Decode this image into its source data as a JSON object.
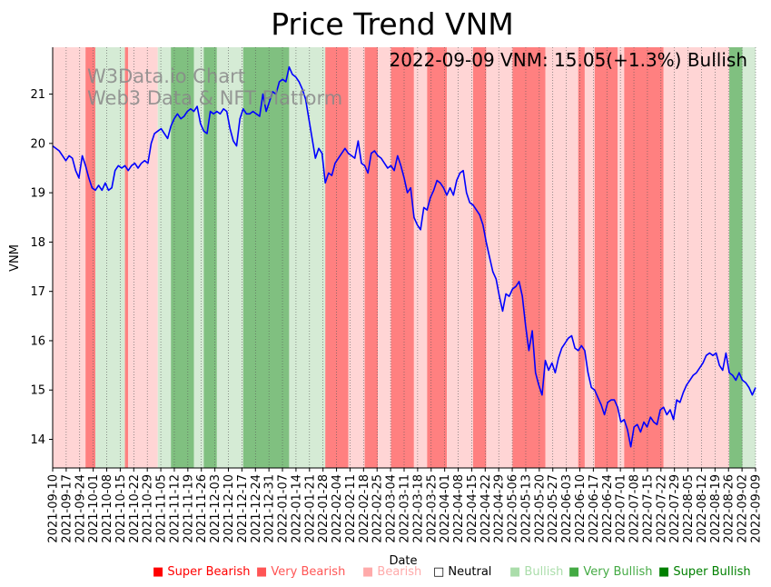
{
  "chart_data": {
    "type": "line",
    "title": "Price Trend VNM",
    "xlabel": "Date",
    "ylabel": "VNM",
    "ylim": [
      13.42,
      21.95
    ],
    "yticks": [
      14,
      15,
      16,
      17,
      18,
      19,
      20,
      21
    ],
    "x_tick_labels": [
      "2021-09-10",
      "2021-09-17",
      "2021-09-24",
      "2021-10-01",
      "2021-10-08",
      "2021-10-15",
      "2021-10-22",
      "2021-10-29",
      "2021-11-05",
      "2021-11-12",
      "2021-11-19",
      "2021-11-26",
      "2021-12-03",
      "2021-12-10",
      "2021-12-17",
      "2021-12-24",
      "2021-12-31",
      "2022-01-07",
      "2022-01-14",
      "2022-01-21",
      "2022-01-28",
      "2022-02-04",
      "2022-02-11",
      "2022-02-18",
      "2022-02-25",
      "2022-03-04",
      "2022-03-11",
      "2022-03-18",
      "2022-03-25",
      "2022-04-01",
      "2022-04-08",
      "2022-04-15",
      "2022-04-22",
      "2022-04-29",
      "2022-05-06",
      "2022-05-13",
      "2022-05-20",
      "2022-05-27",
      "2022-06-03",
      "2022-06-10",
      "2022-06-17",
      "2022-06-24",
      "2022-07-01",
      "2022-07-08",
      "2022-07-15",
      "2022-07-22",
      "2022-07-29",
      "2022-08-05",
      "2022-08-12",
      "2022-08-19",
      "2022-08-26",
      "2022-09-02",
      "2022-09-09"
    ],
    "annotation": "2022-09-09 VNM: 15.05(+1.3%) Bullish",
    "watermark": [
      "W3Data.io Chart",
      "Web3 Data & NFT Platform"
    ],
    "series": [
      {
        "name": "VNM",
        "color": "#0000ff",
        "points": [
          [
            0,
            19.95
          ],
          [
            2,
            19.85
          ],
          [
            4,
            19.65
          ],
          [
            5,
            19.75
          ],
          [
            6,
            19.7
          ],
          [
            7,
            19.45
          ],
          [
            8,
            19.3
          ],
          [
            9,
            19.75
          ],
          [
            10,
            19.55
          ],
          [
            11,
            19.3
          ],
          [
            12,
            19.1
          ],
          [
            13,
            19.05
          ],
          [
            14,
            19.15
          ],
          [
            15,
            19.05
          ],
          [
            16,
            19.2
          ],
          [
            17,
            19.05
          ],
          [
            18,
            19.1
          ],
          [
            19,
            19.45
          ],
          [
            20,
            19.55
          ],
          [
            21,
            19.5
          ],
          [
            22,
            19.55
          ],
          [
            23,
            19.45
          ],
          [
            24,
            19.55
          ],
          [
            25,
            19.6
          ],
          [
            26,
            19.5
          ],
          [
            27,
            19.6
          ],
          [
            28,
            19.65
          ],
          [
            29,
            19.6
          ],
          [
            30,
            20.0
          ],
          [
            31,
            20.2
          ],
          [
            32,
            20.25
          ],
          [
            33,
            20.3
          ],
          [
            34,
            20.2
          ],
          [
            35,
            20.1
          ],
          [
            36,
            20.35
          ],
          [
            37,
            20.5
          ],
          [
            38,
            20.6
          ],
          [
            39,
            20.5
          ],
          [
            40,
            20.55
          ],
          [
            41,
            20.65
          ],
          [
            42,
            20.7
          ],
          [
            43,
            20.65
          ],
          [
            44,
            20.75
          ],
          [
            45,
            20.4
          ],
          [
            46,
            20.25
          ],
          [
            47,
            20.2
          ],
          [
            48,
            20.65
          ],
          [
            49,
            20.6
          ],
          [
            50,
            20.65
          ],
          [
            51,
            20.6
          ],
          [
            52,
            20.7
          ],
          [
            53,
            20.65
          ],
          [
            54,
            20.3
          ],
          [
            55,
            20.05
          ],
          [
            56,
            19.95
          ],
          [
            57,
            20.5
          ],
          [
            58,
            20.7
          ],
          [
            59,
            20.6
          ],
          [
            60,
            20.6
          ],
          [
            61,
            20.65
          ],
          [
            62,
            20.6
          ],
          [
            63,
            20.55
          ],
          [
            64,
            21.0
          ],
          [
            65,
            20.65
          ],
          [
            66,
            20.85
          ],
          [
            67,
            21.05
          ],
          [
            68,
            21.0
          ],
          [
            69,
            21.25
          ],
          [
            70,
            21.3
          ],
          [
            71,
            21.25
          ],
          [
            72,
            21.55
          ],
          [
            73,
            21.4
          ],
          [
            74,
            21.35
          ],
          [
            75,
            21.25
          ],
          [
            76,
            21.1
          ],
          [
            77,
            20.9
          ],
          [
            78,
            20.5
          ],
          [
            79,
            20.1
          ],
          [
            80,
            19.7
          ],
          [
            81,
            19.9
          ],
          [
            82,
            19.8
          ],
          [
            83,
            19.2
          ],
          [
            84,
            19.4
          ],
          [
            85,
            19.35
          ],
          [
            86,
            19.6
          ],
          [
            87,
            19.7
          ],
          [
            88,
            19.8
          ],
          [
            89,
            19.9
          ],
          [
            90,
            19.8
          ],
          [
            91,
            19.75
          ],
          [
            92,
            19.7
          ],
          [
            93,
            20.05
          ],
          [
            94,
            19.6
          ],
          [
            95,
            19.55
          ],
          [
            96,
            19.4
          ],
          [
            97,
            19.8
          ],
          [
            98,
            19.85
          ],
          [
            99,
            19.75
          ],
          [
            100,
            19.7
          ],
          [
            101,
            19.6
          ],
          [
            102,
            19.5
          ],
          [
            103,
            19.55
          ],
          [
            104,
            19.45
          ],
          [
            105,
            19.75
          ],
          [
            106,
            19.55
          ],
          [
            107,
            19.3
          ],
          [
            108,
            19.0
          ],
          [
            109,
            19.1
          ],
          [
            110,
            18.5
          ],
          [
            111,
            18.35
          ],
          [
            112,
            18.25
          ],
          [
            113,
            18.7
          ],
          [
            114,
            18.65
          ],
          [
            115,
            18.9
          ],
          [
            116,
            19.05
          ],
          [
            117,
            19.25
          ],
          [
            118,
            19.2
          ],
          [
            119,
            19.1
          ],
          [
            120,
            18.95
          ],
          [
            121,
            19.1
          ],
          [
            122,
            18.95
          ],
          [
            123,
            19.25
          ],
          [
            124,
            19.4
          ],
          [
            125,
            19.45
          ],
          [
            126,
            19.0
          ],
          [
            127,
            18.8
          ],
          [
            128,
            18.75
          ],
          [
            129,
            18.65
          ],
          [
            130,
            18.55
          ],
          [
            131,
            18.35
          ],
          [
            132,
            18.0
          ],
          [
            133,
            17.7
          ],
          [
            134,
            17.4
          ],
          [
            135,
            17.25
          ],
          [
            136,
            16.9
          ],
          [
            137,
            16.6
          ],
          [
            138,
            16.95
          ],
          [
            139,
            16.9
          ],
          [
            140,
            17.05
          ],
          [
            141,
            17.1
          ],
          [
            142,
            17.2
          ],
          [
            143,
            16.9
          ],
          [
            144,
            16.3
          ],
          [
            145,
            15.8
          ],
          [
            146,
            16.2
          ],
          [
            147,
            15.35
          ],
          [
            148,
            15.1
          ],
          [
            149,
            14.9
          ],
          [
            150,
            15.6
          ],
          [
            151,
            15.4
          ],
          [
            152,
            15.55
          ],
          [
            153,
            15.35
          ],
          [
            154,
            15.65
          ],
          [
            155,
            15.85
          ],
          [
            156,
            15.95
          ],
          [
            157,
            16.05
          ],
          [
            158,
            16.1
          ],
          [
            159,
            15.85
          ],
          [
            160,
            15.8
          ],
          [
            161,
            15.9
          ],
          [
            162,
            15.8
          ],
          [
            163,
            15.35
          ],
          [
            164,
            15.05
          ],
          [
            165,
            15.0
          ],
          [
            166,
            14.85
          ],
          [
            167,
            14.7
          ],
          [
            168,
            14.5
          ],
          [
            169,
            14.75
          ],
          [
            170,
            14.8
          ],
          [
            171,
            14.8
          ],
          [
            172,
            14.65
          ],
          [
            173,
            14.35
          ],
          [
            174,
            14.4
          ],
          [
            175,
            14.2
          ],
          [
            176,
            13.85
          ],
          [
            177,
            14.25
          ],
          [
            178,
            14.3
          ],
          [
            179,
            14.15
          ],
          [
            180,
            14.35
          ],
          [
            181,
            14.25
          ],
          [
            182,
            14.45
          ],
          [
            183,
            14.35
          ],
          [
            184,
            14.3
          ],
          [
            185,
            14.6
          ],
          [
            186,
            14.65
          ],
          [
            187,
            14.5
          ],
          [
            188,
            14.6
          ],
          [
            189,
            14.4
          ],
          [
            190,
            14.8
          ],
          [
            191,
            14.75
          ],
          [
            192,
            14.95
          ],
          [
            193,
            15.1
          ],
          [
            194,
            15.2
          ],
          [
            195,
            15.3
          ],
          [
            196,
            15.35
          ],
          [
            197,
            15.45
          ],
          [
            198,
            15.55
          ],
          [
            199,
            15.7
          ],
          [
            200,
            15.75
          ],
          [
            201,
            15.7
          ],
          [
            202,
            15.75
          ],
          [
            203,
            15.5
          ],
          [
            204,
            15.4
          ],
          [
            205,
            15.75
          ],
          [
            206,
            15.35
          ],
          [
            207,
            15.3
          ],
          [
            208,
            15.2
          ],
          [
            209,
            15.35
          ],
          [
            210,
            15.2
          ],
          [
            211,
            15.15
          ],
          [
            212,
            15.05
          ],
          [
            213,
            14.9
          ],
          [
            214,
            15.05
          ]
        ]
      }
    ],
    "x_max_index": 214,
    "sentiment_bands": [
      {
        "start": 0,
        "end": 10,
        "level": "Bearish"
      },
      {
        "start": 10,
        "end": 13,
        "level": "Very Bearish"
      },
      {
        "start": 13,
        "end": 22,
        "level": "Bullish"
      },
      {
        "start": 22,
        "end": 23,
        "level": "Very Bearish"
      },
      {
        "start": 23,
        "end": 32,
        "level": "Bearish"
      },
      {
        "start": 32,
        "end": 36,
        "level": "Bullish"
      },
      {
        "start": 36,
        "end": 43,
        "level": "Very Bullish"
      },
      {
        "start": 43,
        "end": 46,
        "level": "Bullish"
      },
      {
        "start": 46,
        "end": 50,
        "level": "Very Bullish"
      },
      {
        "start": 50,
        "end": 58,
        "level": "Bullish"
      },
      {
        "start": 58,
        "end": 72,
        "level": "Very Bullish"
      },
      {
        "start": 72,
        "end": 83,
        "level": "Bullish"
      },
      {
        "start": 83,
        "end": 90,
        "level": "Very Bearish"
      },
      {
        "start": 90,
        "end": 95,
        "level": "Bearish"
      },
      {
        "start": 95,
        "end": 99,
        "level": "Very Bearish"
      },
      {
        "start": 99,
        "end": 103,
        "level": "Bearish"
      },
      {
        "start": 103,
        "end": 110,
        "level": "Very Bearish"
      },
      {
        "start": 110,
        "end": 114,
        "level": "Bearish"
      },
      {
        "start": 114,
        "end": 120,
        "level": "Very Bearish"
      },
      {
        "start": 120,
        "end": 128,
        "level": "Bearish"
      },
      {
        "start": 128,
        "end": 132,
        "level": "Very Bearish"
      },
      {
        "start": 132,
        "end": 140,
        "level": "Bearish"
      },
      {
        "start": 140,
        "end": 150,
        "level": "Very Bearish"
      },
      {
        "start": 150,
        "end": 160,
        "level": "Bearish"
      },
      {
        "start": 160,
        "end": 162,
        "level": "Very Bearish"
      },
      {
        "start": 162,
        "end": 165,
        "level": "Bearish"
      },
      {
        "start": 165,
        "end": 172,
        "level": "Very Bearish"
      },
      {
        "start": 172,
        "end": 174,
        "level": "Bearish"
      },
      {
        "start": 174,
        "end": 186,
        "level": "Very Bearish"
      },
      {
        "start": 186,
        "end": 190,
        "level": "Bearish"
      },
      {
        "start": 190,
        "end": 206,
        "level": "Bearish"
      },
      {
        "start": 206,
        "end": 210,
        "level": "Very Bullish"
      },
      {
        "start": 210,
        "end": 214,
        "level": "Bullish"
      }
    ],
    "legend": [
      {
        "label": "Super Bearish",
        "marker": "■",
        "color": "#ff0000"
      },
      {
        "label": "Very Bearish",
        "marker": "■",
        "color": "#ff5555"
      },
      {
        "label": "Bearish",
        "marker": "■",
        "color": "#ffaaaa"
      },
      {
        "label": "Neutral",
        "marker": "□",
        "color": "#000000"
      },
      {
        "label": "Bullish",
        "marker": "■",
        "color": "#aaddaa"
      },
      {
        "label": "Very Bullish",
        "marker": "■",
        "color": "#44aa44"
      },
      {
        "label": "Super Bullish",
        "marker": "■",
        "color": "#008000"
      }
    ],
    "band_colors": {
      "Bearish": "#ffd5d5",
      "Very Bearish": "#ff8080",
      "Bullish": "#d5ebd5",
      "Very Bullish": "#80c080"
    },
    "line_color": "#0000ff"
  }
}
